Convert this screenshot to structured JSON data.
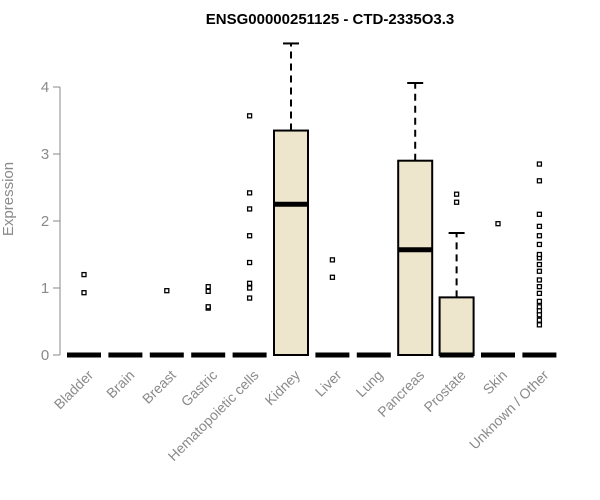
{
  "chart_data": {
    "type": "box",
    "title": "ENSG00000251125 - CTD-2335O3.3",
    "ylabel": "Expression",
    "xlabel": "",
    "ylim": [
      0,
      4.6
    ],
    "yticks": [
      0,
      1,
      2,
      3,
      4
    ],
    "box_fill": "#ede6cd",
    "line_color": "#000000",
    "axis_color": "#8a8a8a",
    "categories": [
      {
        "name": "Bladder",
        "q1": 0,
        "median": 0,
        "q3": 0,
        "whisker_low": 0,
        "whisker_high": 0,
        "outliers": [
          0.93,
          1.2
        ]
      },
      {
        "name": "Brain",
        "q1": 0,
        "median": 0,
        "q3": 0,
        "whisker_low": 0,
        "whisker_high": 0,
        "outliers": []
      },
      {
        "name": "Breast",
        "q1": 0,
        "median": 0,
        "q3": 0,
        "whisker_low": 0,
        "whisker_high": 0,
        "outliers": [
          0.96
        ]
      },
      {
        "name": "Gastric",
        "q1": 0,
        "median": 0,
        "q3": 0,
        "whisker_low": 0,
        "whisker_high": 0,
        "outliers": [
          0.7,
          0.72,
          0.95,
          1.02
        ]
      },
      {
        "name": "Hematopoietic cells",
        "q1": 0,
        "median": 0,
        "q3": 0,
        "whisker_low": 0,
        "whisker_high": 0,
        "outliers": [
          0.85,
          1.0,
          1.07,
          1.38,
          1.78,
          2.18,
          2.42,
          3.57
        ]
      },
      {
        "name": "Kidney",
        "q1": 0,
        "median": 2.25,
        "q3": 3.35,
        "whisker_low": 0,
        "whisker_high": 4.65,
        "outliers": []
      },
      {
        "name": "Liver",
        "q1": 0,
        "median": 0,
        "q3": 0,
        "whisker_low": 0,
        "whisker_high": 0,
        "outliers": [
          1.16,
          1.42
        ]
      },
      {
        "name": "Lung",
        "q1": 0,
        "median": 0,
        "q3": 0,
        "whisker_low": 0,
        "whisker_high": 0,
        "outliers": []
      },
      {
        "name": "Pancreas",
        "q1": 0,
        "median": 1.57,
        "q3": 2.9,
        "whisker_low": 0,
        "whisker_high": 4.06,
        "outliers": []
      },
      {
        "name": "Prostate",
        "q1": 0,
        "median": 0,
        "q3": 0.86,
        "whisker_low": 0,
        "whisker_high": 1.82,
        "outliers": [
          2.28,
          2.4
        ]
      },
      {
        "name": "Skin",
        "q1": 0,
        "median": 0,
        "q3": 0,
        "whisker_low": 0,
        "whisker_high": 0,
        "outliers": [
          1.96
        ]
      },
      {
        "name": "Unknown / Other",
        "q1": 0,
        "median": 0,
        "q3": 0,
        "whisker_low": 0,
        "whisker_high": 0,
        "outliers": [
          0.45,
          0.52,
          0.6,
          0.66,
          0.72,
          0.8,
          0.92,
          1.02,
          1.12,
          1.25,
          1.35,
          1.45,
          1.5,
          1.65,
          1.78,
          1.92,
          2.1,
          2.6,
          2.85
        ]
      }
    ]
  }
}
